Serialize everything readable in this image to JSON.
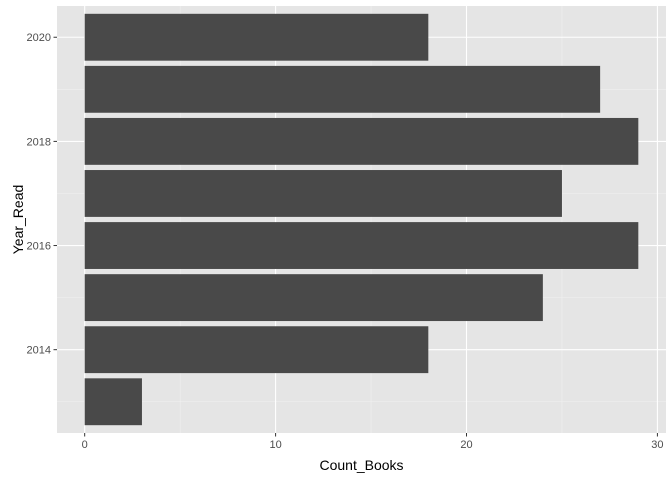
{
  "chart_data": {
    "type": "bar",
    "orientation": "horizontal",
    "categories": [
      2013,
      2014,
      2015,
      2016,
      2017,
      2018,
      2019,
      2020
    ],
    "values": [
      3,
      18,
      24,
      29,
      25,
      29,
      27,
      18
    ],
    "xlabel": "Count_Books",
    "ylabel": "Year_Read",
    "xlim": [
      -1.45,
      30.45
    ],
    "x_ticks": [
      0,
      10,
      20,
      30
    ],
    "y_ticks": [
      2014,
      2016,
      2018,
      2020
    ],
    "grid": true,
    "colors": {
      "bar": "#494949",
      "panel_background": "#e5e5e5",
      "grid_major": "#ffffff",
      "grid_minor": "#f1f1f1",
      "tick_mark": "#333333"
    }
  }
}
